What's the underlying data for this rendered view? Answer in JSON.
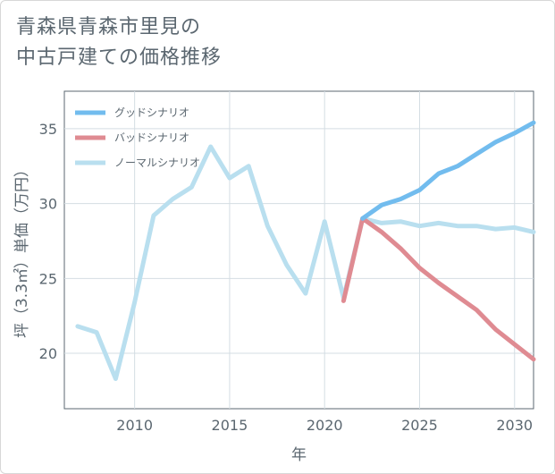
{
  "title_lines": [
    "青森県青森市里見の",
    "中古戸建ての価格推移"
  ],
  "chart_data": {
    "type": "line",
    "xlabel": "年",
    "ylabel": "坪（3.3㎡）単価（万円）",
    "xlim": [
      2006.3,
      2031.0
    ],
    "ylim": [
      16.3,
      37.5
    ],
    "x_ticks": [
      2010,
      2015,
      2020,
      2025,
      2030
    ],
    "y_ticks": [
      20,
      25,
      30,
      35
    ],
    "legend_position": "top-left",
    "series": [
      {
        "name": "グッドシナリオ",
        "color": "#72bcee",
        "x": [
          2022,
          2023,
          2024,
          2025,
          2026,
          2027,
          2028,
          2029,
          2030,
          2031
        ],
        "values": [
          29.0,
          29.9,
          30.3,
          30.9,
          32.0,
          32.5,
          33.3,
          34.1,
          34.7,
          35.4
        ]
      },
      {
        "name": "バッドシナリオ",
        "color": "#df8b92",
        "x": [
          2021,
          2022,
          2023,
          2024,
          2025,
          2026,
          2027,
          2028,
          2029,
          2030,
          2031
        ],
        "values": [
          23.5,
          29.0,
          28.1,
          27.0,
          25.7,
          24.7,
          23.8,
          22.9,
          21.6,
          20.6,
          19.6
        ]
      },
      {
        "name": "ノーマルシナリオ",
        "color": "#b9dfef",
        "x": [
          2007,
          2008,
          2009,
          2010,
          2011,
          2012,
          2013,
          2014,
          2015,
          2016,
          2017,
          2018,
          2019,
          2020,
          2021,
          2022,
          2023,
          2024,
          2025,
          2026,
          2027,
          2028,
          2029,
          2030,
          2031
        ],
        "values": [
          21.8,
          21.4,
          18.3,
          23.4,
          29.2,
          30.3,
          31.1,
          33.8,
          31.7,
          32.5,
          28.5,
          25.9,
          24.0,
          28.8,
          23.7,
          29.0,
          28.7,
          28.8,
          28.5,
          28.7,
          28.5,
          28.5,
          28.3,
          28.4,
          28.1
        ]
      }
    ]
  }
}
